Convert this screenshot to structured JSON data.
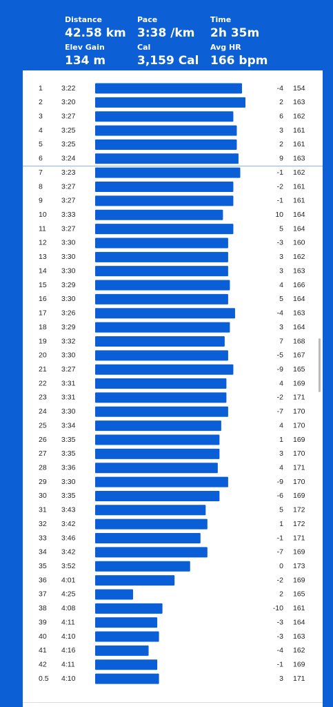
{
  "header": {
    "stats": [
      {
        "label": "Distance",
        "value": "42.58 km"
      },
      {
        "label": "Pace",
        "value": "3:38 /km"
      },
      {
        "label": "Time",
        "value": "2h 35m"
      },
      {
        "label": "Elev Gain",
        "value": "134 m"
      },
      {
        "label": "Cal",
        "value": "3,159 Cal"
      },
      {
        "label": "Avg HR",
        "value": "166 bpm"
      }
    ]
  },
  "splits": {
    "rows": [
      [
        1,
        "3:22",
        -4,
        154
      ],
      [
        2,
        "3:20",
        2,
        163
      ],
      [
        3,
        "3:27",
        6,
        162
      ],
      [
        4,
        "3:25",
        3,
        161
      ],
      [
        5,
        "3:25",
        2,
        161
      ],
      [
        6,
        "3:24",
        9,
        163
      ],
      [
        7,
        "3:23",
        -1,
        162
      ],
      [
        8,
        "3:27",
        -2,
        161
      ],
      [
        9,
        "3:27",
        -1,
        161
      ],
      [
        10,
        "3:33",
        10,
        164
      ],
      [
        11,
        "3:27",
        5,
        164
      ],
      [
        12,
        "3:30",
        -3,
        160
      ],
      [
        13,
        "3:30",
        3,
        162
      ],
      [
        14,
        "3:30",
        3,
        163
      ],
      [
        15,
        "3:29",
        4,
        166
      ],
      [
        16,
        "3:30",
        5,
        164
      ],
      [
        17,
        "3:26",
        -4,
        163
      ],
      [
        18,
        "3:29",
        3,
        164
      ],
      [
        19,
        "3:32",
        7,
        168
      ],
      [
        20,
        "3:30",
        -5,
        167
      ],
      [
        21,
        "3:27",
        -9,
        165
      ],
      [
        22,
        "3:31",
        4,
        169
      ],
      [
        23,
        "3:31",
        -2,
        171
      ],
      [
        24,
        "3:30",
        -7,
        170
      ],
      [
        25,
        "3:34",
        4,
        170
      ],
      [
        26,
        "3:35",
        1,
        169
      ],
      [
        27,
        "3:35",
        3,
        170
      ],
      [
        28,
        "3:36",
        4,
        171
      ],
      [
        29,
        "3:30",
        -9,
        170
      ],
      [
        30,
        "3:35",
        -6,
        169
      ],
      [
        31,
        "3:43",
        5,
        172
      ],
      [
        32,
        "3:42",
        1,
        172
      ],
      [
        33,
        "3:46",
        -1,
        171
      ],
      [
        34,
        "3:42",
        -7,
        169
      ],
      [
        35,
        "3:52",
        0,
        173
      ],
      [
        36,
        "4:01",
        -2,
        169
      ],
      [
        37,
        "4:25",
        2,
        165
      ],
      [
        38,
        "4:08",
        -10,
        161
      ],
      [
        39,
        "4:11",
        -3,
        164
      ],
      [
        40,
        "4:10",
        -3,
        163
      ],
      [
        41,
        "4:16",
        -4,
        162
      ],
      [
        42,
        "4:11",
        -1,
        169
      ],
      [
        0.5,
        "4:10",
        3,
        171
      ]
    ]
  }
}
